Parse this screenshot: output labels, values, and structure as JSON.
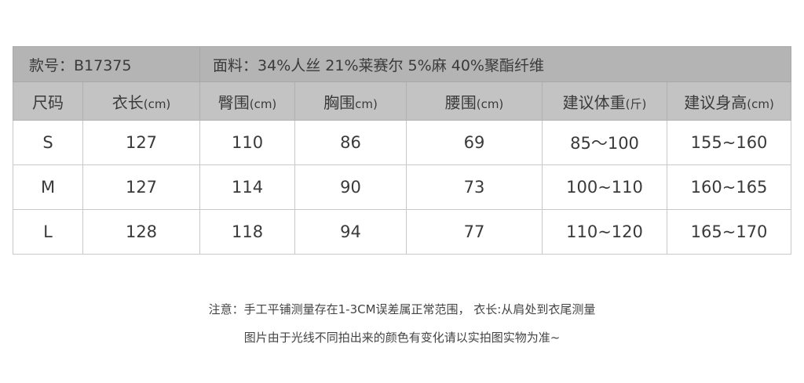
{
  "info": {
    "style_no": "款号：B17375",
    "fabric": "面料：34%人丝 21%莱赛尔 5%麻 40%聚酯纤维"
  },
  "headers": [
    {
      "label": "尺码",
      "unit": ""
    },
    {
      "label": "衣长",
      "unit": "(cm)"
    },
    {
      "label": "臀围",
      "unit": "(cm)"
    },
    {
      "label": "胸围",
      "unit": "cm)"
    },
    {
      "label": "腰围",
      "unit": "(cm)"
    },
    {
      "label": "建议体重",
      "unit": "(斤)"
    },
    {
      "label": "建议身高",
      "unit": "(cm)"
    }
  ],
  "rows": [
    [
      "S",
      "127",
      "110",
      "86",
      "69",
      "85～100",
      "155~160"
    ],
    [
      "M",
      "127",
      "114",
      "90",
      "73",
      "100~110",
      "160~165"
    ],
    [
      "L",
      "128",
      "118",
      "94",
      "77",
      "110~120",
      "165~170"
    ]
  ],
  "notes": [
    "注意：手工平铺测量存在1-3CM误差属正常范围， 衣长:从肩处到衣尾测量",
    "图片由于光线不同拍出来的颜色有变化请以实拍图实物为准~"
  ]
}
